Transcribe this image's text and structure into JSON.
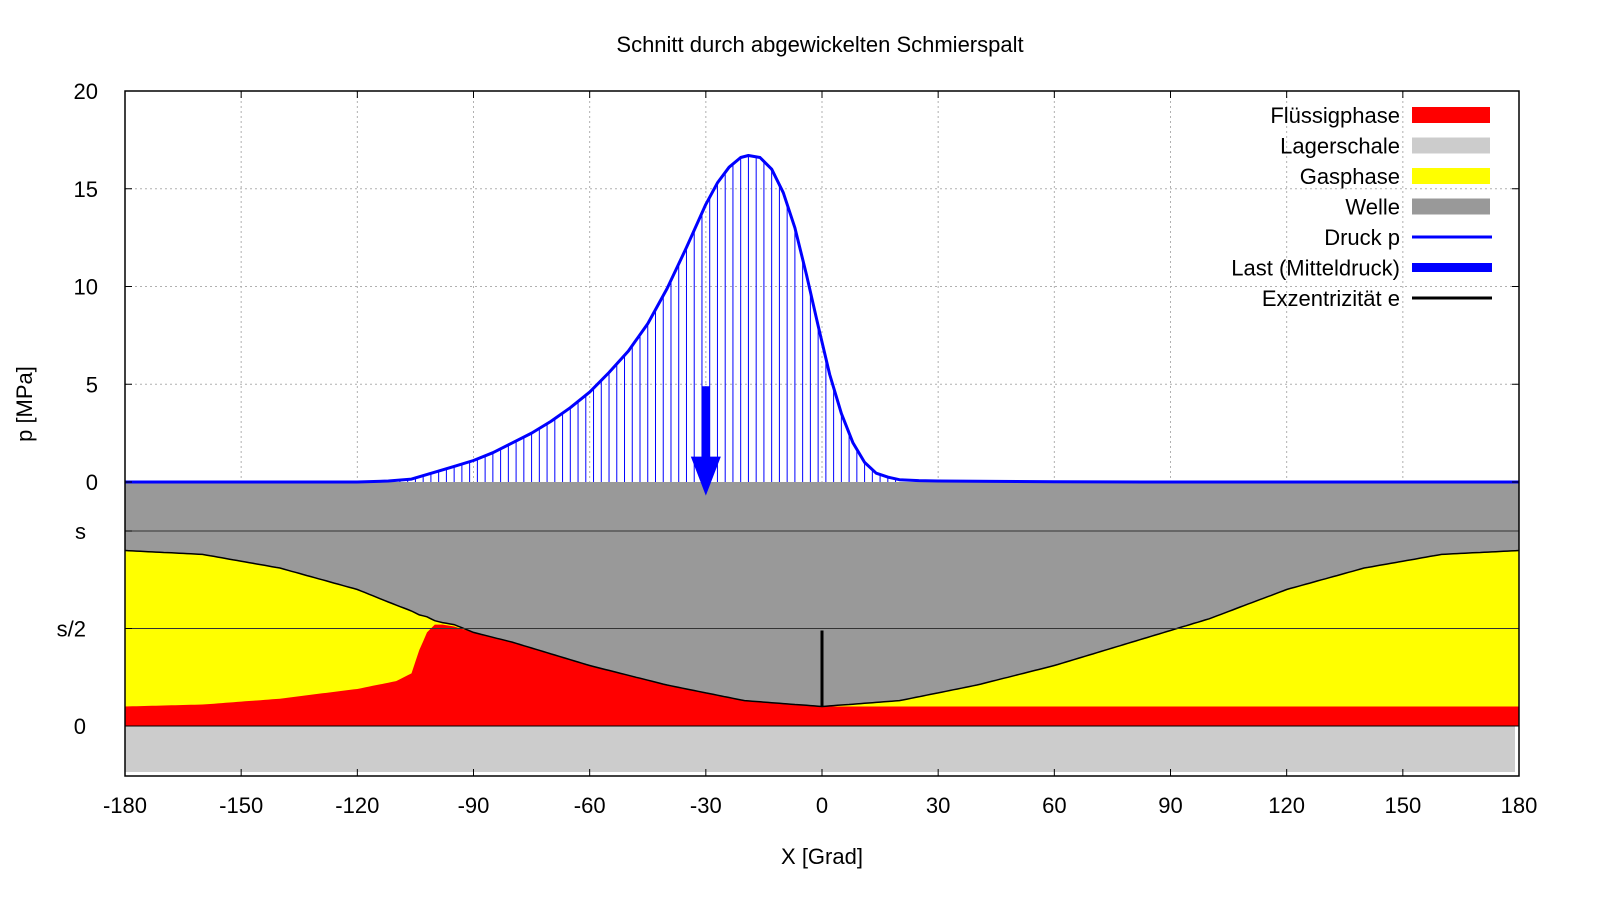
{
  "colors": {
    "fluessigphase": "#ff0000",
    "lagerschale": "#cccccc",
    "gasphase": "#ffff00",
    "welle": "#999999",
    "druck": "#0000ff",
    "last": "#0000ff",
    "exzentrizitaet": "#000000"
  },
  "chart_data": {
    "type": "line",
    "title": "Schnitt durch abgewickelten Schmierspalt",
    "xlabel": "X [Grad]",
    "ylabel": "p [MPa]",
    "xlim": [
      -180,
      180
    ],
    "ylim": [
      0,
      20
    ],
    "grid": true,
    "legend_position": "top-right",
    "x_ticks": [
      "-180",
      "-150",
      "-120",
      "-90",
      "-60",
      "-30",
      "0",
      "30",
      "60",
      "90",
      "120",
      "150",
      "180"
    ],
    "y_ticks": [
      "0",
      "5",
      "10",
      "15",
      "20"
    ],
    "gap_ticks": [
      "s",
      "s/2",
      "0"
    ],
    "legend": [
      "Flüssigphase",
      "Lagerschale",
      "Gasphase",
      "Welle",
      "Druck p",
      "Last (Mitteldruck)",
      "Exzentrizität e"
    ],
    "pressure": {
      "name": "Druck p",
      "x": [
        -180,
        -120,
        -112,
        -106,
        -100,
        -95,
        -90,
        -85,
        -80,
        -75,
        -70,
        -65,
        -60,
        -55,
        -50,
        -45,
        -40,
        -35,
        -30,
        -27,
        -24,
        -21,
        -19,
        -16,
        -13,
        -10,
        -7,
        -4,
        -1,
        2,
        5,
        8,
        11,
        14,
        17,
        20,
        25,
        30,
        45,
        60,
        90,
        120,
        150,
        180
      ],
      "y": [
        0,
        0,
        0.05,
        0.15,
        0.5,
        0.8,
        1.1,
        1.5,
        2.0,
        2.5,
        3.1,
        3.8,
        4.6,
        5.6,
        6.7,
        8.1,
        9.9,
        12.0,
        14.2,
        15.3,
        16.1,
        16.6,
        16.7,
        16.6,
        16.0,
        14.8,
        13.0,
        10.6,
        8.0,
        5.5,
        3.5,
        2.0,
        1.0,
        0.45,
        0.25,
        0.12,
        0.07,
        0.05,
        0.03,
        0.01,
        0,
        0,
        0,
        0
      ]
    },
    "load": {
      "name": "Last (Mitteldruck)",
      "x": -30,
      "from": 4.9,
      "to": 0
    },
    "eccentricity": {
      "name": "Exzentrizität e",
      "x": 0,
      "from_gap": 0.1,
      "to_gap": 0.49
    },
    "gap": {
      "x": [
        -180,
        -160,
        -140,
        -120,
        -110,
        -106,
        -104,
        -102,
        -100,
        -98,
        -95,
        -90,
        -80,
        -60,
        -40,
        -20,
        0,
        20,
        40,
        60,
        80,
        90,
        100,
        120,
        140,
        160,
        180
      ],
      "welle_boundary": [
        0.9,
        0.88,
        0.81,
        0.7,
        0.62,
        0.59,
        0.57,
        0.56,
        0.54,
        0.53,
        0.52,
        0.48,
        0.43,
        0.31,
        0.21,
        0.13,
        0.1,
        0.13,
        0.21,
        0.31,
        0.43,
        0.49,
        0.55,
        0.7,
        0.81,
        0.88,
        0.9
      ],
      "fluid_top": [
        0.1,
        0.11,
        0.14,
        0.19,
        0.23,
        0.27,
        0.39,
        0.48,
        0.52,
        0.52,
        0.51,
        0.48,
        0.43,
        0.31,
        0.21,
        0.13,
        0.1,
        0.1,
        0.1,
        0.1,
        0.1,
        0.1,
        0.1,
        0.1,
        0.1,
        0.1,
        0.1
      ]
    }
  }
}
